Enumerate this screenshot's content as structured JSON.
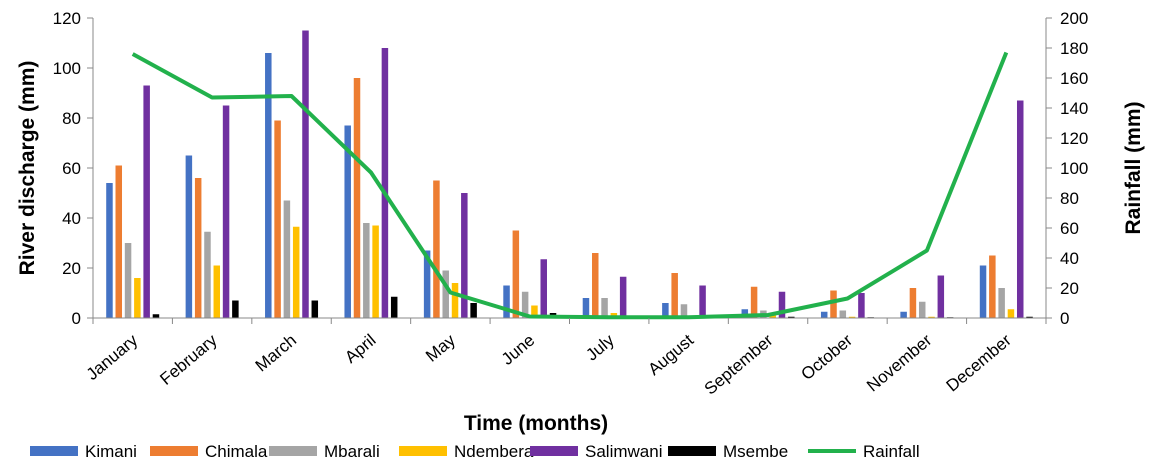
{
  "chart_data": {
    "type": "bar",
    "title": "",
    "xlabel": "Time (months)",
    "ylabel": "River discharge (mm)",
    "y2label": "Rainfall (mm)",
    "ylim": [
      0,
      120
    ],
    "y2lim": [
      0,
      200
    ],
    "yticks": [
      "0",
      "20",
      "40",
      "60",
      "80",
      "100",
      "120"
    ],
    "y2ticks": [
      "0",
      "20",
      "40",
      "60",
      "80",
      "100",
      "120",
      "140",
      "160",
      "180",
      "200"
    ],
    "legend_position": "bottom",
    "categories": [
      "January",
      "February",
      "March",
      "April",
      "May",
      "June",
      "July",
      "August",
      "September",
      "October",
      "November",
      "December"
    ],
    "series": [
      {
        "name": "Kimani",
        "color": "#4472C4",
        "type": "bar",
        "values": [
          54,
          65,
          106,
          77,
          27,
          13,
          8,
          6,
          3.5,
          2.5,
          2.5,
          21
        ]
      },
      {
        "name": "Chimala",
        "color": "#ED7D31",
        "type": "bar",
        "values": [
          61,
          56,
          79,
          96,
          55,
          35,
          26,
          18,
          12.5,
          11,
          12,
          25
        ]
      },
      {
        "name": "Mbarali",
        "color": "#A5A5A5",
        "type": "bar",
        "values": [
          30,
          34.5,
          47,
          38,
          19,
          10.5,
          8,
          5.5,
          3,
          3,
          6.5,
          12
        ]
      },
      {
        "name": "Ndembera",
        "color": "#FFC000",
        "type": "bar",
        "values": [
          16,
          21,
          36.5,
          37,
          14,
          5,
          2,
          1,
          1.5,
          0.5,
          0.5,
          3.5
        ]
      },
      {
        "name": "Salimwani",
        "color": "#7030A0",
        "type": "bar",
        "values": [
          93,
          85,
          115,
          108,
          50,
          23.5,
          16.5,
          13,
          10.5,
          10,
          17,
          87
        ]
      },
      {
        "name": "Msembe",
        "color": "#000000",
        "type": "bar",
        "values": [
          1.5,
          7,
          7,
          8.5,
          6,
          2,
          0.5,
          0.5,
          0.5,
          0.3,
          0.3,
          0.5
        ]
      },
      {
        "name": "Rainfall",
        "color": "#22B14C",
        "type": "line",
        "axis": "right",
        "values": [
          176,
          147,
          148,
          97,
          17,
          1,
          0.5,
          0.5,
          2,
          13,
          45,
          177
        ]
      }
    ]
  }
}
